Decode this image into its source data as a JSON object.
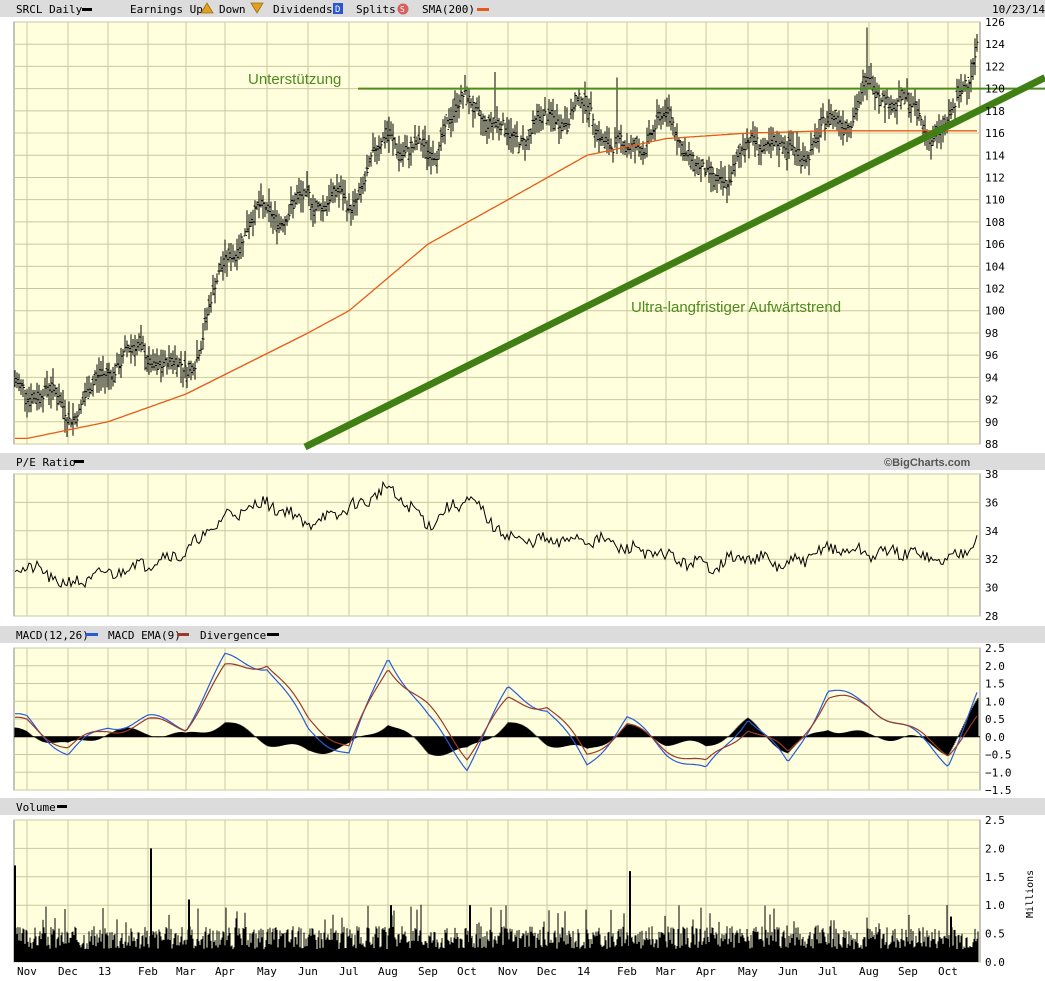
{
  "header": {
    "symbol_label": "SRCL Daily",
    "earnings_label": "Earnings Up",
    "earnings_down_label": "Down",
    "dividends_label": "Dividends",
    "dividends_marker": "D",
    "splits_label": "Splits",
    "splits_marker": "S",
    "sma_label": "SMA(200)",
    "date": "10/23/14"
  },
  "colors": {
    "panel_bg": "#ffffdd",
    "grid": "#c8c8a0",
    "header_bg": "#dcdcdc",
    "sma": "#e85a1a",
    "annotation": "#4e8a1e",
    "trendline": "#3f7f14",
    "macd": "#2a5bd7",
    "macd_ema": "#9a3a2a",
    "earnings_marker": "#e0a020",
    "splits_marker": "#d66060",
    "dividends_marker": "#2a55cc"
  },
  "annotations": {
    "support_label": "Unterstützung",
    "trend_label": "Ultra-langfristiger Aufwärtstrend",
    "watermark": "©BigCharts.com"
  },
  "panels": {
    "pe_label": "P/E Ratio",
    "macd_label": "MACD(12,26)",
    "macd_ema_label": "MACD EMA(9)",
    "divergence_label": "Divergence",
    "volume_label": "Volume",
    "volume_unit": "Millions"
  },
  "x_axis": {
    "labels": [
      "Nov",
      "Dec",
      "13",
      "Feb",
      "Mar",
      "Apr",
      "May",
      "Jun",
      "Jul",
      "Aug",
      "Sep",
      "Oct",
      "Nov",
      "Dec",
      "14",
      "Feb",
      "Mar",
      "Apr",
      "May",
      "Jun",
      "Jul",
      "Aug",
      "Sep",
      "Oct"
    ]
  },
  "chart_data": [
    {
      "type": "ohlc",
      "title": "SRCL Daily",
      "ylim": [
        88,
        126
      ],
      "yticks": [
        88,
        90,
        92,
        94,
        96,
        98,
        100,
        102,
        104,
        106,
        108,
        110,
        112,
        114,
        116,
        118,
        120,
        122,
        124,
        126
      ],
      "price_anchors": [
        [
          "Nov 2012",
          92
        ],
        [
          "Dec 2012",
          92
        ],
        [
          "Jan 2013",
          95
        ],
        [
          "Feb 2013",
          95
        ],
        [
          "Mar 2013",
          96
        ],
        [
          "Apr 2013",
          104
        ],
        [
          "May 2013",
          109
        ],
        [
          "Jun 2013",
          111
        ],
        [
          "Jul 2013",
          108
        ],
        [
          "Aug 2013",
          117
        ],
        [
          "Sep 2013",
          114
        ],
        [
          "Oct 2013",
          118
        ],
        [
          "Nov 2013",
          117
        ],
        [
          "Dec 2013",
          116
        ],
        [
          "Jan 2014",
          118
        ],
        [
          "Feb 2014",
          115
        ],
        [
          "Mar 2014",
          116
        ],
        [
          "Apr 2014",
          112
        ],
        [
          "May 2014",
          115
        ],
        [
          "Jun 2014",
          113
        ],
        [
          "Jul 2014",
          118
        ],
        [
          "Aug 2014",
          119
        ],
        [
          "Sep 2014",
          118
        ],
        [
          "Oct 2014",
          117
        ],
        [
          "Oct 23 2014",
          124
        ]
      ],
      "series": [
        {
          "name": "SMA(200)",
          "values": [
            [
              "Nov 2012",
              88.5
            ],
            [
              "Jan 2013",
              90
            ],
            [
              "Mar 2013",
              92.5
            ],
            [
              "Jun 2013",
              98
            ],
            [
              "Jul 2013",
              100
            ],
            [
              "Sep 2013",
              106
            ],
            [
              "Nov 2013",
              110
            ],
            [
              "Jan 2014",
              114
            ],
            [
              "Mar 2014",
              115.5
            ],
            [
              "May 2014",
              116
            ],
            [
              "Jul 2014",
              116.2
            ],
            [
              "Oct 23 2014",
              116.2
            ]
          ]
        }
      ],
      "support_level": 120,
      "trendline": [
        [
          "Jun 2013",
          88
        ],
        [
          "Oct 23 2014",
          118
        ]
      ]
    },
    {
      "type": "line",
      "title": "P/E Ratio",
      "ylim": [
        28,
        38
      ],
      "yticks": [
        28,
        30,
        32,
        34,
        36,
        38
      ],
      "anchors": [
        [
          "Nov 2012",
          31.5
        ],
        [
          "Dec 2012",
          30.2
        ],
        [
          "Jan 2013",
          31
        ],
        [
          "Feb 2013",
          31.8
        ],
        [
          "Mar 2013",
          32.5
        ],
        [
          "Apr 2013",
          35
        ],
        [
          "May 2013",
          36
        ],
        [
          "Jun 2013",
          34.5
        ],
        [
          "Jul 2013",
          35.5
        ],
        [
          "Aug 2013",
          37
        ],
        [
          "Sep 2013",
          34.5
        ],
        [
          "Oct 2013",
          36.3
        ],
        [
          "Nov 2013",
          33.5
        ],
        [
          "Dec 2013",
          33.2
        ],
        [
          "Jan 2014",
          33.5
        ],
        [
          "Feb 2014",
          32.8
        ],
        [
          "Mar 2014",
          32.2
        ],
        [
          "Apr 2014",
          31.5
        ],
        [
          "May 2014",
          32.2
        ],
        [
          "Jun 2014",
          31.5
        ],
        [
          "Jul 2014",
          32.8
        ],
        [
          "Aug 2014",
          32.4
        ],
        [
          "Sep 2014",
          32.5
        ],
        [
          "Oct 2014",
          31.8
        ],
        [
          "Oct 23 2014",
          33.6
        ]
      ]
    },
    {
      "type": "line",
      "title": "MACD(12,26)",
      "ylim": [
        -1.5,
        2.5
      ],
      "yticks": [
        -1.5,
        -1.0,
        -0.5,
        0.0,
        0.5,
        1.0,
        1.5,
        2.0,
        2.5
      ],
      "series": [
        {
          "name": "MACD(12,26)",
          "values": [
            [
              "Nov 2012",
              0.5
            ],
            [
              "Dec 2012",
              -0.5
            ],
            [
              "Jan 2013",
              0.3
            ],
            [
              "Feb 2013",
              0.5
            ],
            [
              "Mar 2013",
              0.3
            ],
            [
              "Apr 2013",
              2.2
            ],
            [
              "May 2013",
              2.0
            ],
            [
              "Jun 2013",
              0.2
            ],
            [
              "Jul 2013",
              -0.5
            ],
            [
              "Aug 2013",
              2.3
            ],
            [
              "Sep 2013",
              0.5
            ],
            [
              "Oct 2013",
              -0.8
            ],
            [
              "Nov 2013",
              1.3
            ],
            [
              "Dec 2013",
              0.8
            ],
            [
              "Jan 2014",
              -0.8
            ],
            [
              "Feb 2014",
              0.5
            ],
            [
              "Mar 2014",
              -0.4
            ],
            [
              "Apr 2014",
              -1.0
            ],
            [
              "May 2014",
              0.6
            ],
            [
              "Jun 2014",
              -0.8
            ],
            [
              "Jul 2014",
              1.3
            ],
            [
              "Aug 2014",
              0.9
            ],
            [
              "Sep 2014",
              0.2
            ],
            [
              "Oct 2014",
              -0.7
            ],
            [
              "Oct 23 2014",
              1.2
            ]
          ]
        },
        {
          "name": "MACD EMA(9)",
          "values": [
            [
              "Nov 2012",
              0.4
            ],
            [
              "Dec 2012",
              -0.3
            ],
            [
              "Jan 2013",
              0.2
            ],
            [
              "Feb 2013",
              0.4
            ],
            [
              "Mar 2013",
              0.3
            ],
            [
              "Apr 2013",
              1.9
            ],
            [
              "May 2013",
              2.1
            ],
            [
              "Jun 2013",
              0.5
            ],
            [
              "Jul 2013",
              -0.3
            ],
            [
              "Aug 2013",
              2.0
            ],
            [
              "Sep 2013",
              0.8
            ],
            [
              "Oct 2013",
              -0.5
            ],
            [
              "Nov 2013",
              1.0
            ],
            [
              "Dec 2013",
              0.9
            ],
            [
              "Jan 2014",
              -0.5
            ],
            [
              "Feb 2014",
              0.3
            ],
            [
              "Mar 2014",
              -0.3
            ],
            [
              "Apr 2014",
              -0.8
            ],
            [
              "May 2014",
              0.3
            ],
            [
              "Jun 2014",
              -0.5
            ],
            [
              "Jul 2014",
              1.1
            ],
            [
              "Aug 2014",
              0.9
            ],
            [
              "Sep 2014",
              0.2
            ],
            [
              "Oct 2014",
              -0.4
            ],
            [
              "Oct 23 2014",
              0.5
            ]
          ]
        }
      ]
    },
    {
      "type": "bar",
      "title": "Volume",
      "ylabel": "Millions",
      "ylim": [
        0,
        2.5
      ],
      "yticks": [
        0.0,
        0.5,
        1.0,
        1.5,
        2.0,
        2.5
      ],
      "spikes": [
        [
          "Nov 2012",
          1.7
        ],
        [
          "Feb 2013",
          2.0
        ],
        [
          "Mar 2013",
          1.1
        ],
        [
          "Aug 2013",
          1.0
        ],
        [
          "Oct 2013",
          1.0
        ],
        [
          "Feb 2014",
          1.6
        ],
        [
          "Oct 2014",
          0.8
        ]
      ],
      "typical_level": 0.45
    }
  ]
}
